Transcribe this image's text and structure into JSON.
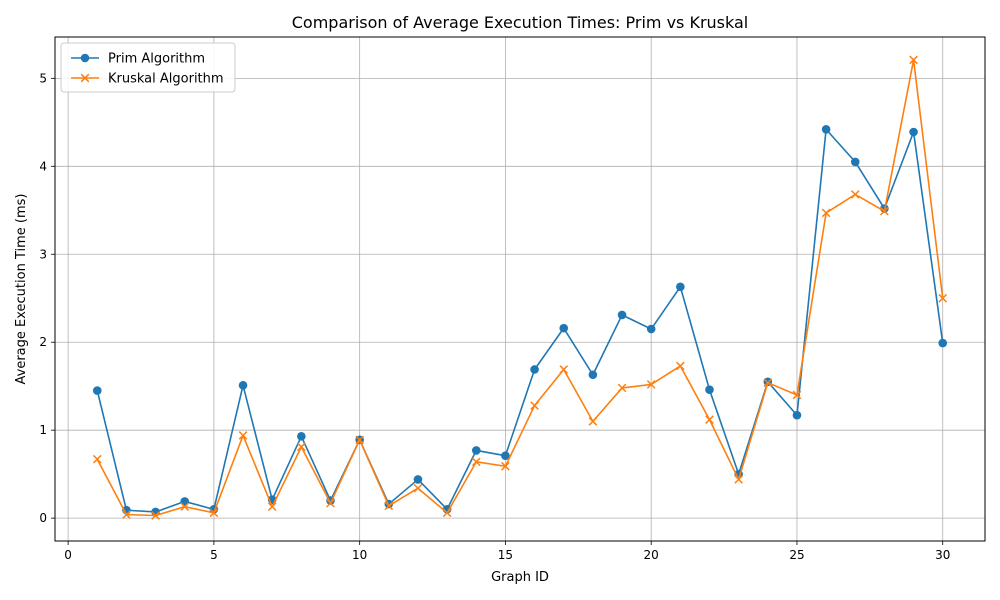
{
  "chart_data": {
    "type": "line",
    "title": "Comparison of Average Execution Times: Prim vs Kruskal",
    "xlabel": "Graph ID",
    "ylabel": "Average Execution Time (ms)",
    "xlim": [
      -0.45,
      31.45
    ],
    "ylim": [
      -0.26,
      5.47
    ],
    "xticks": [
      0,
      5,
      10,
      15,
      20,
      25,
      30
    ],
    "yticks": [
      0,
      1,
      2,
      3,
      4,
      5
    ],
    "grid": true,
    "legend_position": "top-left",
    "x": [
      1,
      2,
      3,
      4,
      5,
      6,
      7,
      8,
      9,
      10,
      11,
      12,
      13,
      14,
      15,
      16,
      17,
      18,
      19,
      20,
      21,
      22,
      23,
      24,
      25,
      26,
      27,
      28,
      29,
      30
    ],
    "series": [
      {
        "name": "Prim Algorithm",
        "color": "#1f77b4",
        "marker": "circle",
        "values": [
          1.45,
          0.09,
          0.07,
          0.19,
          0.1,
          1.51,
          0.21,
          0.93,
          0.2,
          0.89,
          0.16,
          0.44,
          0.1,
          0.77,
          0.71,
          1.69,
          2.16,
          1.63,
          2.31,
          2.15,
          2.63,
          1.46,
          0.5,
          1.55,
          1.17,
          4.42,
          4.05,
          3.52,
          4.39,
          1.99
        ]
      },
      {
        "name": "Kruskal Algorithm",
        "color": "#ff7f0e",
        "marker": "x",
        "values": [
          0.67,
          0.04,
          0.03,
          0.13,
          0.06,
          0.94,
          0.13,
          0.81,
          0.17,
          0.89,
          0.14,
          0.34,
          0.06,
          0.64,
          0.59,
          1.28,
          1.69,
          1.1,
          1.48,
          1.52,
          1.73,
          1.12,
          0.44,
          1.54,
          1.4,
          3.47,
          3.68,
          3.49,
          5.21,
          2.5
        ]
      }
    ]
  }
}
